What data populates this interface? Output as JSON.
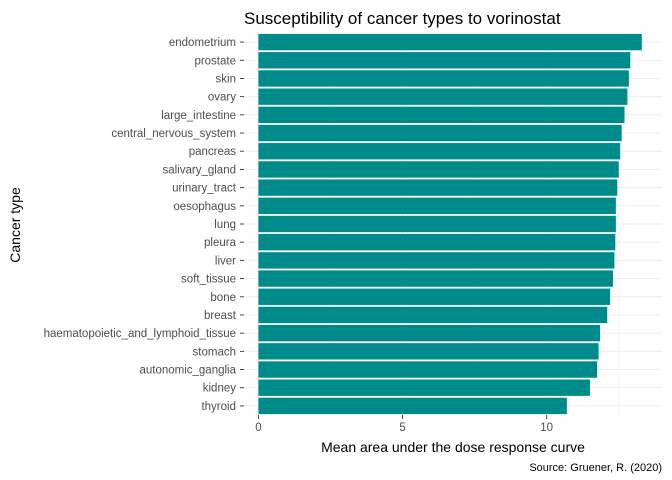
{
  "chart_data": {
    "type": "bar",
    "orientation": "horizontal",
    "title": "Susceptibility of cancer types to vorinostat",
    "xlabel": "Mean area under the dose response curve",
    "ylabel": "Cancer type",
    "caption": "Source: Gruener, R. (2020)",
    "bar_color": "#008B8B",
    "xlim": [
      -0.5,
      14.0
    ],
    "x_ticks": [
      0,
      5,
      10
    ],
    "grid": true,
    "legend": "none",
    "categories": [
      "endometrium",
      "prostate",
      "skin",
      "ovary",
      "large_intestine",
      "central_nervous_system",
      "pancreas",
      "salivary_gland",
      "urinary_tract",
      "oesophagus",
      "lung",
      "pleura",
      "liver",
      "soft_tissue",
      "bone",
      "breast",
      "haematopoietic_and_lymphoid_tissue",
      "stomach",
      "autonomic_ganglia",
      "kidney",
      "thyroid"
    ],
    "values": [
      13.3,
      12.9,
      12.85,
      12.8,
      12.7,
      12.6,
      12.55,
      12.5,
      12.45,
      12.4,
      12.4,
      12.38,
      12.35,
      12.3,
      12.2,
      12.1,
      11.85,
      11.8,
      11.75,
      11.5,
      10.7
    ]
  }
}
